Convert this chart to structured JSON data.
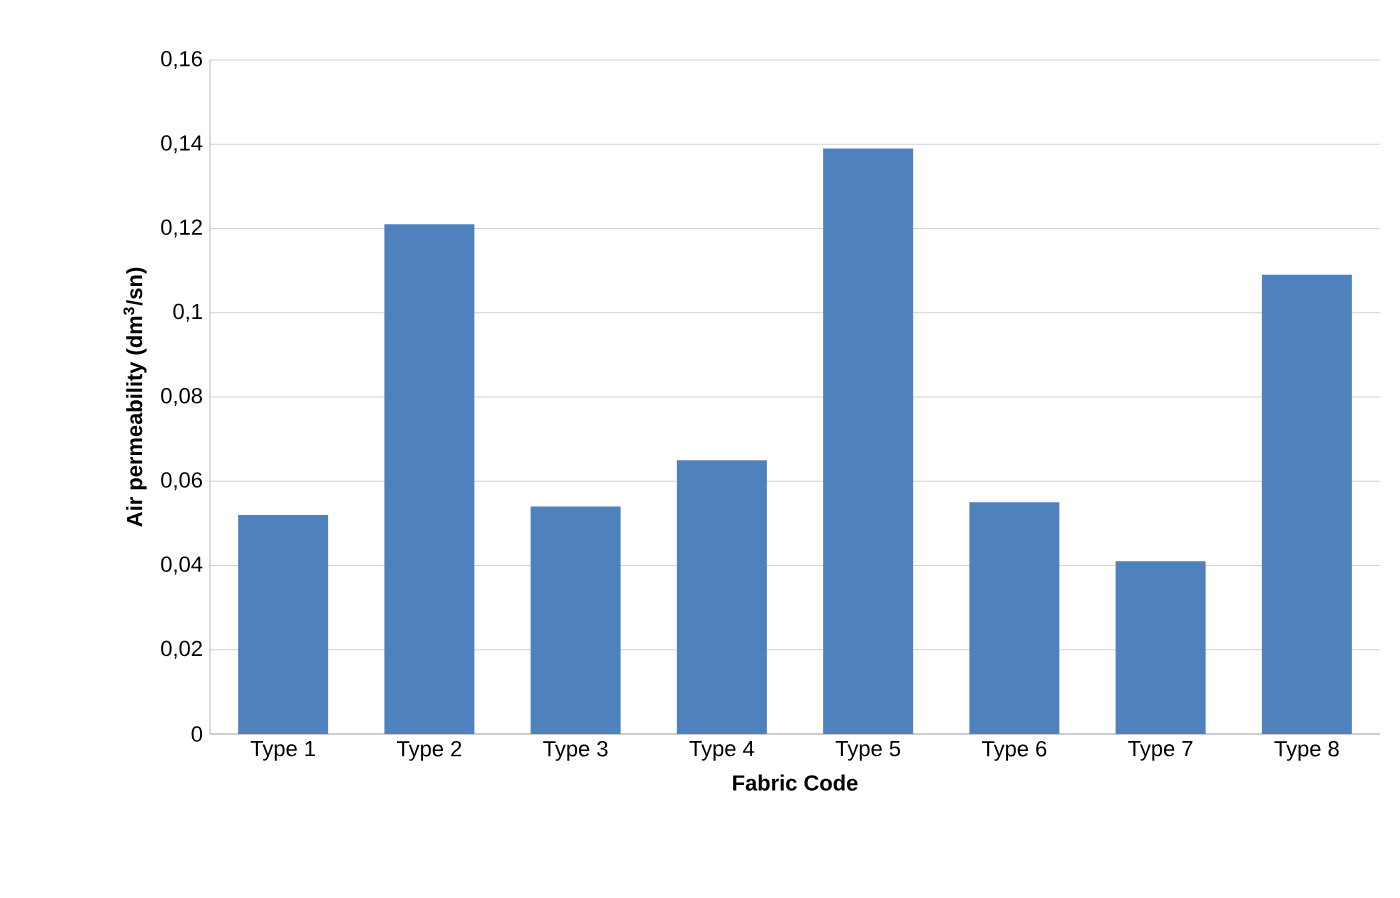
{
  "chart_data": {
    "type": "bar",
    "xlabel": "Fabric Code",
    "ylabel": "Air permeability (dm$^{3}$/sn)",
    "categories": [
      "Type 1",
      "Type 2",
      "Type 3",
      "Type 4",
      "Type 5",
      "Type 6",
      "Type 7",
      "Type 8"
    ],
    "values": [
      0.052,
      0.121,
      0.054,
      0.065,
      0.139,
      0.055,
      0.041,
      0.109
    ],
    "color": "#4f81bd",
    "ylim": [
      0,
      0.16
    ],
    "yticks": [
      {
        "value": 0,
        "label": "0"
      },
      {
        "value": 0.02,
        "label": "0,02"
      },
      {
        "value": 0.04,
        "label": "0,04"
      },
      {
        "value": 0.06,
        "label": "0,06"
      },
      {
        "value": 0.08,
        "label": "0,08"
      },
      {
        "value": 0.1,
        "label": "0,1"
      },
      {
        "value": 0.12,
        "label": "0,12"
      },
      {
        "value": 0.14,
        "label": "0,14"
      },
      {
        "value": 0.16,
        "label": "0,16"
      }
    ],
    "grid": "y"
  }
}
